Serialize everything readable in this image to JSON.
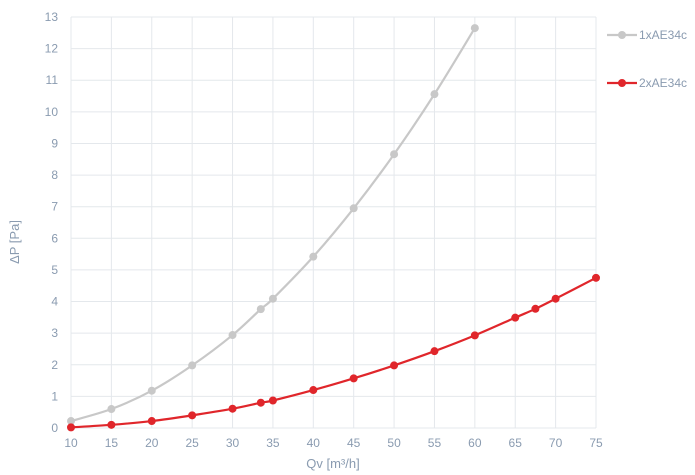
{
  "chart_data": {
    "type": "line",
    "xlabel": "Qv [m³/h]",
    "ylabel": "ΔP [Pa]",
    "xlim": [
      10,
      75
    ],
    "ylim": [
      0,
      13
    ],
    "x_ticks": [
      "10",
      "15",
      "20",
      "25",
      "30",
      "35",
      "40",
      "45",
      "50",
      "55",
      "60",
      "65",
      "70",
      "75"
    ],
    "y_ticks": [
      "0",
      "1",
      "2",
      "3",
      "4",
      "5",
      "6",
      "7",
      "8",
      "9",
      "10",
      "11",
      "12",
      "13"
    ],
    "grid": true,
    "legend_position": "right",
    "series": [
      {
        "name": "1xAE34c",
        "color": "#c8c8c8",
        "x": [
          10,
          15,
          20,
          25,
          30,
          33.5,
          35,
          40,
          45,
          50,
          55,
          60
        ],
        "y": [
          0.22,
          0.6,
          1.18,
          1.98,
          2.94,
          3.76,
          4.09,
          5.42,
          6.95,
          8.66,
          10.56,
          12.65
        ]
      },
      {
        "name": "2xAE34c",
        "color": "#e0262b",
        "x": [
          10,
          15,
          20,
          25,
          30,
          33.5,
          35,
          40,
          45,
          50,
          55,
          60,
          65,
          67.5,
          70,
          75
        ],
        "y": [
          0.02,
          0.1,
          0.22,
          0.4,
          0.61,
          0.8,
          0.87,
          1.2,
          1.57,
          1.98,
          2.43,
          2.93,
          3.49,
          3.77,
          4.09,
          4.75
        ]
      }
    ]
  }
}
